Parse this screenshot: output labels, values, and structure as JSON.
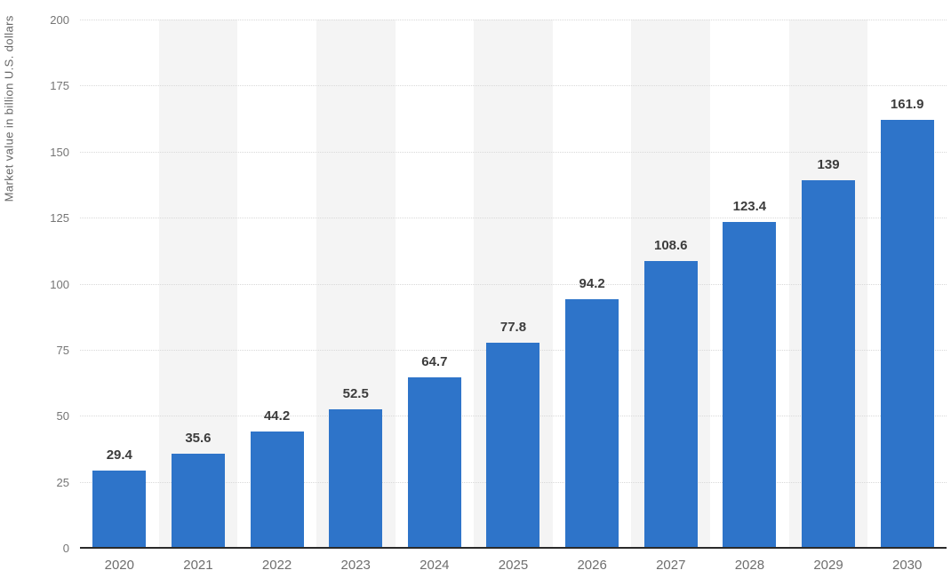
{
  "chart_data": {
    "type": "bar",
    "title": "",
    "ylabel": "Market value in billion U.S. dollars",
    "xlabel": "",
    "categories": [
      "2020",
      "2021",
      "2022",
      "2023",
      "2024",
      "2025",
      "2026",
      "2027",
      "2028",
      "2029",
      "2030"
    ],
    "values": [
      29.4,
      35.6,
      44.2,
      52.5,
      64.7,
      77.8,
      94.2,
      108.6,
      123.4,
      139,
      161.9
    ],
    "value_labels": [
      "29.4",
      "35.6",
      "44.2",
      "52.5",
      "64.7",
      "77.8",
      "94.2",
      "108.6",
      "123.4",
      "139",
      "161.9"
    ],
    "ylim": [
      0,
      200
    ],
    "yticks": [
      0,
      25,
      50,
      75,
      100,
      125,
      150,
      175,
      200
    ],
    "grid": "horizontal-dotted",
    "legend_position": "none",
    "bar_color": "#2e74c9",
    "band_color": "#f4f4f4",
    "label_color": "#3c3c3c",
    "tick_color": "#757575",
    "axis_color": "#2a2a2a",
    "alternating_column_bands": "odd-index columns shaded"
  }
}
